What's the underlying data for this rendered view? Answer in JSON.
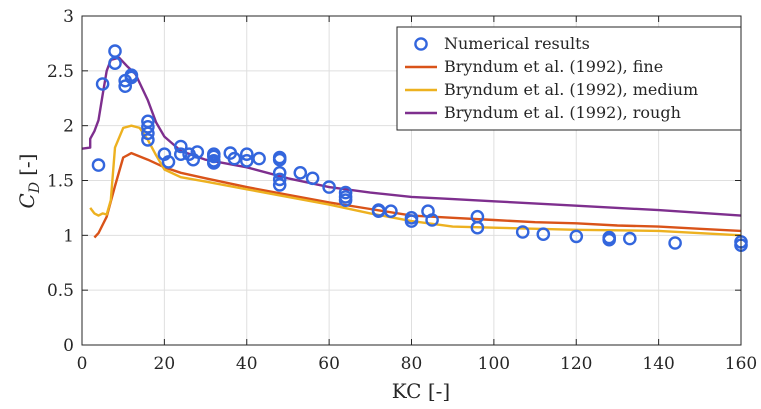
{
  "chart_data": {
    "type": "line",
    "xlabel": "KC [-]",
    "ylabel_main": "C",
    "ylabel_sub": "D",
    "ylabel_unit": "[-]",
    "xlim": [
      0,
      160
    ],
    "ylim": [
      0,
      3
    ],
    "xticks": [
      0,
      20,
      40,
      60,
      80,
      100,
      120,
      140,
      160
    ],
    "yticks": [
      0,
      0.5,
      1,
      1.5,
      2,
      2.5,
      3
    ],
    "ytick_labels": [
      "0",
      "0.5",
      "1",
      "1.5",
      "2",
      "2.5",
      "3"
    ],
    "grid": true,
    "legend_placement": "top-right",
    "series": [
      {
        "name": "Numerical results",
        "kind": "marker",
        "color": "#3366dd",
        "points": [
          [
            4,
            1.64
          ],
          [
            5,
            2.38
          ],
          [
            8,
            2.68
          ],
          [
            8,
            2.57
          ],
          [
            10.5,
            2.36
          ],
          [
            10.5,
            2.41
          ],
          [
            12,
            2.46
          ],
          [
            12,
            2.44
          ],
          [
            16,
            2.04
          ],
          [
            16,
            1.99
          ],
          [
            16,
            1.93
          ],
          [
            16,
            1.87
          ],
          [
            20,
            1.74
          ],
          [
            21,
            1.67
          ],
          [
            24,
            1.81
          ],
          [
            24,
            1.74
          ],
          [
            26,
            1.74
          ],
          [
            27,
            1.69
          ],
          [
            28,
            1.76
          ],
          [
            32,
            1.74
          ],
          [
            32,
            1.72
          ],
          [
            32,
            1.68
          ],
          [
            32,
            1.66
          ],
          [
            36,
            1.75
          ],
          [
            37,
            1.7
          ],
          [
            40,
            1.74
          ],
          [
            40,
            1.68
          ],
          [
            43,
            1.7
          ],
          [
            48,
            1.71
          ],
          [
            48,
            1.69
          ],
          [
            48,
            1.57
          ],
          [
            48,
            1.51
          ],
          [
            48,
            1.46
          ],
          [
            53,
            1.57
          ],
          [
            56,
            1.52
          ],
          [
            60,
            1.44
          ],
          [
            64,
            1.39
          ],
          [
            64,
            1.35
          ],
          [
            64,
            1.32
          ],
          [
            72,
            1.23
          ],
          [
            72,
            1.22
          ],
          [
            75,
            1.22
          ],
          [
            80,
            1.16
          ],
          [
            80,
            1.13
          ],
          [
            84,
            1.22
          ],
          [
            85,
            1.14
          ],
          [
            96,
            1.17
          ],
          [
            96,
            1.07
          ],
          [
            107,
            1.03
          ],
          [
            112,
            1.01
          ],
          [
            120,
            0.99
          ],
          [
            128,
            0.98
          ],
          [
            128,
            0.96
          ],
          [
            133,
            0.97
          ],
          [
            144,
            0.93
          ],
          [
            160,
            0.94
          ],
          [
            160,
            0.91
          ]
        ]
      },
      {
        "name": "Bryndum et al. (1992), fine",
        "kind": "line",
        "color": "#d95319",
        "points": [
          [
            3,
            0.98
          ],
          [
            4,
            1.02
          ],
          [
            6,
            1.17
          ],
          [
            8,
            1.45
          ],
          [
            10,
            1.71
          ],
          [
            12,
            1.75
          ],
          [
            16,
            1.69
          ],
          [
            20,
            1.62
          ],
          [
            24,
            1.57
          ],
          [
            30,
            1.52
          ],
          [
            40,
            1.44
          ],
          [
            50,
            1.37
          ],
          [
            60,
            1.3
          ],
          [
            70,
            1.24
          ],
          [
            80,
            1.18
          ],
          [
            90,
            1.16
          ],
          [
            100,
            1.14
          ],
          [
            110,
            1.12
          ],
          [
            120,
            1.11
          ],
          [
            130,
            1.09
          ],
          [
            140,
            1.08
          ],
          [
            150,
            1.06
          ],
          [
            160,
            1.04
          ]
        ]
      },
      {
        "name": "Bryndum et al. (1992), medium",
        "kind": "line",
        "color": "#edb120",
        "points": [
          [
            2,
            1.25
          ],
          [
            3,
            1.2
          ],
          [
            4,
            1.18
          ],
          [
            5,
            1.2
          ],
          [
            6,
            1.19
          ],
          [
            7,
            1.32
          ],
          [
            8,
            1.8
          ],
          [
            10,
            1.98
          ],
          [
            12,
            2.0
          ],
          [
            14,
            1.98
          ],
          [
            16,
            1.87
          ],
          [
            18,
            1.73
          ],
          [
            20,
            1.6
          ],
          [
            24,
            1.53
          ],
          [
            30,
            1.49
          ],
          [
            40,
            1.42
          ],
          [
            50,
            1.35
          ],
          [
            60,
            1.28
          ],
          [
            70,
            1.2
          ],
          [
            80,
            1.13
          ],
          [
            90,
            1.08
          ],
          [
            100,
            1.07
          ],
          [
            120,
            1.05
          ],
          [
            140,
            1.04
          ],
          [
            160,
            1.0
          ]
        ]
      },
      {
        "name": "Bryndum et al. (1992), rough",
        "kind": "line",
        "color": "#7e2f8e",
        "points": [
          [
            0,
            1.79
          ],
          [
            2,
            1.8
          ],
          [
            2,
            1.88
          ],
          [
            3,
            1.95
          ],
          [
            4,
            2.05
          ],
          [
            5,
            2.28
          ],
          [
            6,
            2.5
          ],
          [
            7,
            2.6
          ],
          [
            9,
            2.62
          ],
          [
            11,
            2.54
          ],
          [
            13,
            2.47
          ],
          [
            16,
            2.23
          ],
          [
            18,
            2.03
          ],
          [
            20,
            1.9
          ],
          [
            24,
            1.77
          ],
          [
            30,
            1.69
          ],
          [
            40,
            1.62
          ],
          [
            50,
            1.52
          ],
          [
            60,
            1.44
          ],
          [
            70,
            1.39
          ],
          [
            80,
            1.35
          ],
          [
            90,
            1.33
          ],
          [
            100,
            1.31
          ],
          [
            120,
            1.27
          ],
          [
            140,
            1.23
          ],
          [
            160,
            1.18
          ]
        ]
      }
    ]
  }
}
